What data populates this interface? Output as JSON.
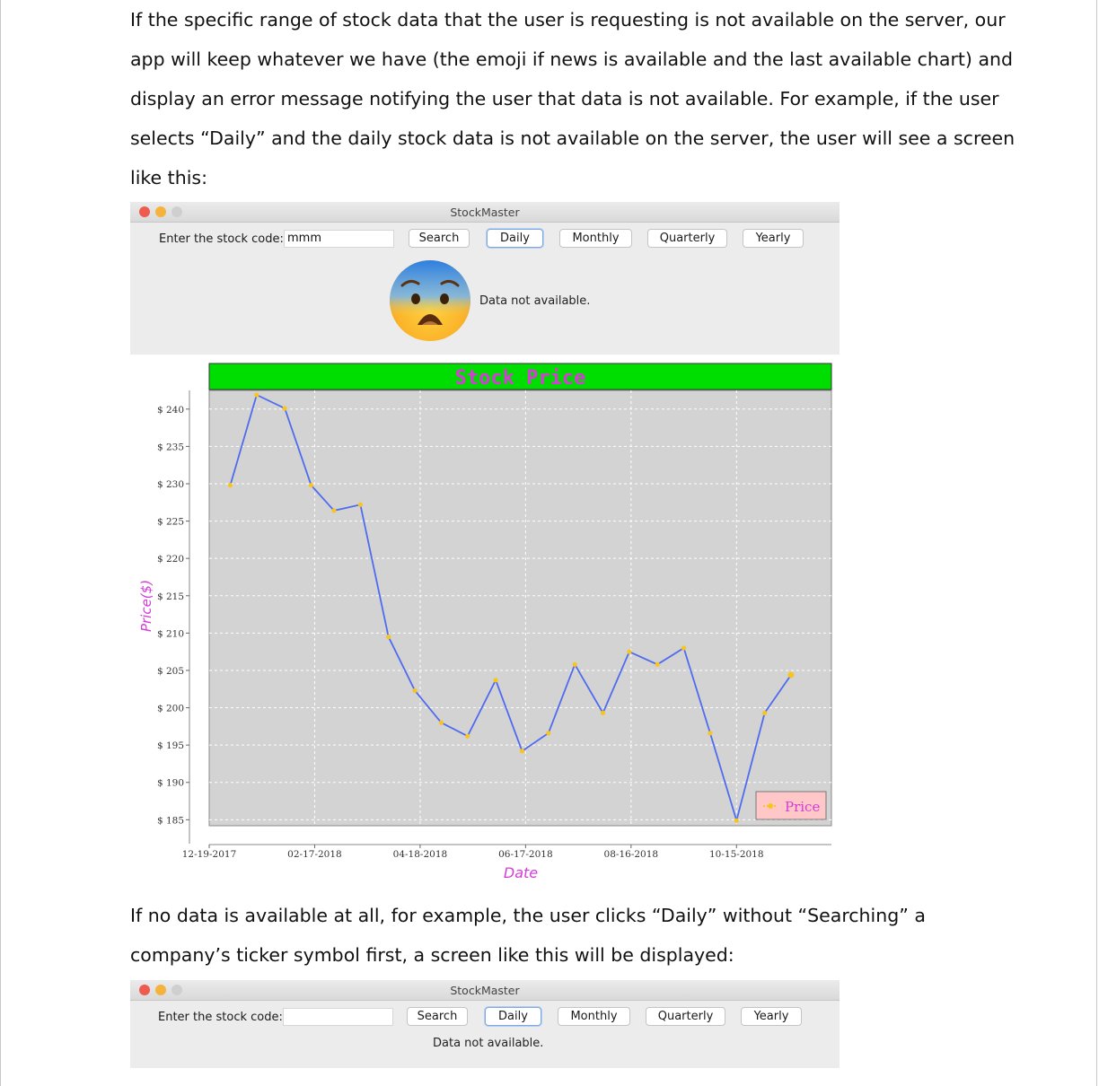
{
  "doc": {
    "para1": [
      "If the specific range of stock data that the user is requesting is not available on the server, our",
      "app will keep whatever we have (the emoji if news is available and the last available chart) and",
      "display an error message notifying the user that data is not available. For example, if the user",
      "selects “Daily” and the daily stock data is not available on the server, the user will see a screen",
      "like this:"
    ],
    "para2": [
      "If no data is available at all, for example, the user clicks “Daily” without “Searching” a",
      "company’s ticker symbol first, a screen like this will be displayed:"
    ]
  },
  "window1": {
    "title": "StockMaster",
    "stock_label": "Enter the stock code:",
    "stock_value": "mmm",
    "buttons": {
      "search": "Search",
      "daily": "Daily",
      "monthly": "Monthly",
      "quarterly": "Quarterly",
      "yearly": "Yearly"
    },
    "message": "Data not available.",
    "emoji": "anxious-face-icon"
  },
  "window2": {
    "title": "StockMaster",
    "stock_label": "Enter the stock code:",
    "stock_value": "",
    "buttons": {
      "search": "Search",
      "daily": "Daily",
      "monthly": "Monthly",
      "quarterly": "Quarterly",
      "yearly": "Yearly"
    },
    "message": "Data not available."
  },
  "colors": {
    "title_band": "#00dd00",
    "title_text": "#d63bd6",
    "plot_bg": "#d3d3d3",
    "line": "#4f6bef",
    "marker": "#f7c51e",
    "axis_label": "#d63bd6"
  },
  "chart_data": {
    "type": "line",
    "title": "Stock Price",
    "xlabel": "Date",
    "ylabel": "Price($)",
    "x_tick_labels": [
      "12-19-2017",
      "02-17-2018",
      "04-18-2018",
      "06-17-2018",
      "08-16-2018",
      "10-15-2018"
    ],
    "y_tick_labels": [
      "$ 240",
      "$ 235",
      "$ 230",
      "$ 225",
      "$ 220",
      "$ 215",
      "$ 210",
      "$ 205",
      "$ 200",
      "$ 195",
      "$ 190",
      "$ 185"
    ],
    "y_ticks": [
      240,
      235,
      230,
      225,
      220,
      215,
      210,
      205,
      200,
      195,
      190,
      185
    ],
    "ylim": [
      184.2,
      242.5
    ],
    "xlim": [
      "2017-12-19",
      "2018-12-08"
    ],
    "grid": true,
    "legend_position": "bottom-right",
    "series": [
      {
        "name": "Price",
        "points": [
          {
            "x": "2017-12-31",
            "y": 229.8
          },
          {
            "x": "2018-01-15",
            "y": 241.9
          },
          {
            "x": "2018-01-31",
            "y": 240.1
          },
          {
            "x": "2018-02-15",
            "y": 229.8
          },
          {
            "x": "2018-02-28",
            "y": 226.4
          },
          {
            "x": "2018-03-15",
            "y": 227.2
          },
          {
            "x": "2018-03-31",
            "y": 209.5
          },
          {
            "x": "2018-04-15",
            "y": 202.3
          },
          {
            "x": "2018-04-30",
            "y": 198.0
          },
          {
            "x": "2018-05-15",
            "y": 196.2
          },
          {
            "x": "2018-05-31",
            "y": 203.7
          },
          {
            "x": "2018-06-15",
            "y": 194.2
          },
          {
            "x": "2018-06-30",
            "y": 196.6
          },
          {
            "x": "2018-07-15",
            "y": 205.8
          },
          {
            "x": "2018-07-31",
            "y": 199.3
          },
          {
            "x": "2018-08-15",
            "y": 207.5
          },
          {
            "x": "2018-08-31",
            "y": 205.8
          },
          {
            "x": "2018-09-15",
            "y": 208.0
          },
          {
            "x": "2018-09-30",
            "y": 196.6
          },
          {
            "x": "2018-10-15",
            "y": 184.9
          },
          {
            "x": "2018-10-31",
            "y": 199.3
          },
          {
            "x": "2018-11-15",
            "y": 204.4
          }
        ]
      }
    ]
  }
}
